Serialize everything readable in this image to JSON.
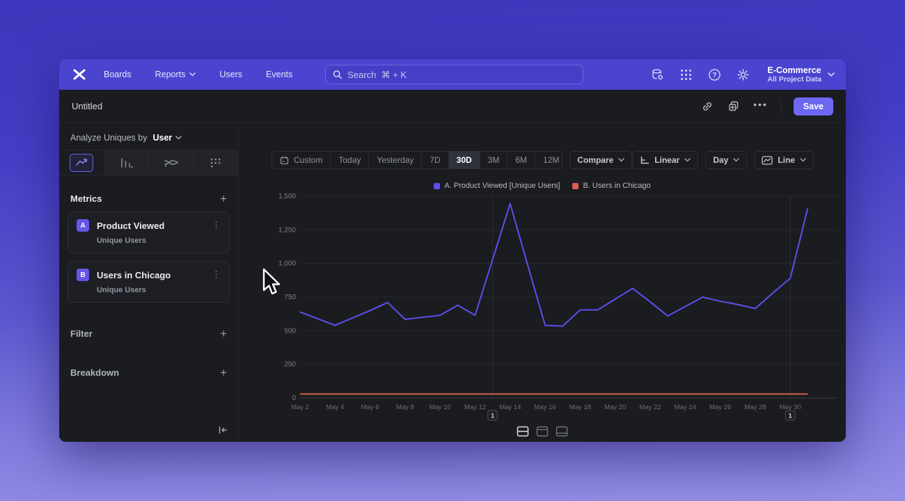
{
  "navbar": {
    "items": [
      {
        "label": "Boards"
      },
      {
        "label": "Reports"
      },
      {
        "label": "Users"
      },
      {
        "label": "Events"
      }
    ],
    "search": {
      "placeholder": "Search  ⌘ + K"
    },
    "project": {
      "name": "E-Commerce",
      "subtitle": "All Project Data"
    }
  },
  "title_bar": {
    "title": "Untitled",
    "save_label": "Save"
  },
  "sidebar": {
    "analyze": {
      "prefix": "Analyze Uniques by",
      "selected": "User"
    },
    "metrics": {
      "header": "Metrics",
      "items": [
        {
          "badge": "A",
          "name": "Product Viewed",
          "subtitle": "Unique Users"
        },
        {
          "badge": "B",
          "name": "Users in Chicago",
          "subtitle": "Unique Users"
        }
      ]
    },
    "filter_header": "Filter",
    "breakdown_header": "Breakdown"
  },
  "toolbar": {
    "ranges": [
      "Custom",
      "Today",
      "Yesterday",
      "7D",
      "30D",
      "3M",
      "6M",
      "12M"
    ],
    "active_range": "30D",
    "compare_label": "Compare",
    "scale_label": "Linear",
    "granularity_label": "Day",
    "chart_type_label": "Line"
  },
  "chart_data": {
    "type": "line",
    "x": [
      "May 2",
      "May 3",
      "May 4",
      "May 5",
      "May 6",
      "May 7",
      "May 8",
      "May 9",
      "May 10",
      "May 11",
      "May 12",
      "May 13",
      "May 14",
      "May 15",
      "May 16",
      "May 17",
      "May 18",
      "May 19",
      "May 20",
      "May 21",
      "May 22",
      "May 23",
      "May 24",
      "May 25",
      "May 26",
      "May 27",
      "May 28",
      "May 29",
      "May 30",
      "May 31"
    ],
    "x_tick_every": 2,
    "series": [
      {
        "name": "A. Product Viewed [Unique Users]",
        "color": "#5a50ee",
        "values": [
          640,
          590,
          540,
          595,
          650,
          710,
          585,
          600,
          615,
          690,
          615,
          1030,
          1445,
          990,
          540,
          535,
          655,
          655,
          735,
          815,
          715,
          610,
          680,
          750,
          720,
          695,
          665,
          780,
          890,
          1410
        ]
      },
      {
        "name": "B. Users in Chicago",
        "color": "#d95f4a",
        "values": [
          30,
          30,
          30,
          30,
          30,
          30,
          30,
          30,
          30,
          30,
          30,
          30,
          30,
          30,
          30,
          30,
          30,
          30,
          30,
          30,
          30,
          30,
          30,
          30,
          30,
          30,
          30,
          30,
          30,
          30
        ]
      }
    ],
    "ylim": [
      0,
      1500
    ],
    "yticks": [
      0,
      250,
      500,
      750,
      1000,
      1250,
      1500
    ],
    "ytick_labels": [
      "0",
      "250",
      "500",
      "750",
      "1,000",
      "1,250",
      "1,500"
    ],
    "annotations": [
      {
        "x_index": 11,
        "label": "1"
      },
      {
        "x_index": 28,
        "label": "1"
      }
    ],
    "grid": true,
    "legend_position": "top-center"
  }
}
